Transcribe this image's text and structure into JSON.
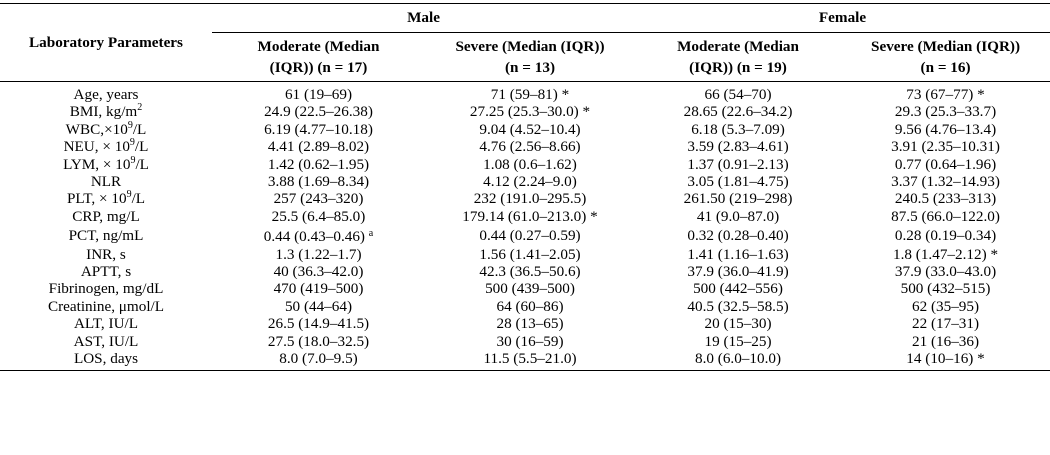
{
  "table": {
    "param_header": "Laboratory Parameters",
    "groups": [
      "Male",
      "Female"
    ],
    "subheaders": [
      [
        "Moderate (Median",
        "(IQR)) (n = 17)"
      ],
      [
        "Severe (Median (IQR))",
        "(n = 13)"
      ],
      [
        "Moderate (Median",
        "(IQR)) (n = 19)"
      ],
      [
        "Severe (Median (IQR))",
        "(n = 16)"
      ]
    ],
    "rows": [
      {
        "label": "Age, years",
        "cells": [
          "61 (19–69)",
          "71 (59–81) *",
          "66 (54–70)",
          "73 (67–77) *"
        ]
      },
      {
        "label": "BMI, kg/m",
        "label_sup": "2",
        "cells": [
          "24.9 (22.5–26.38)",
          "27.25 (25.3–30.0) *",
          "28.65 (22.6–34.2)",
          "29.3 (25.3–33.7)"
        ]
      },
      {
        "label": "WBC,×10",
        "label_sup": "9",
        "label_after": "/L",
        "cells": [
          "6.19 (4.77–10.18)",
          "9.04 (4.52–10.4)",
          "6.18 (5.3–7.09)",
          "9.56 (4.76–13.4)"
        ]
      },
      {
        "label": "NEU, × 10",
        "label_sup": "9",
        "label_after": "/L",
        "cells": [
          "4.41 (2.89–8.02)",
          "4.76 (2.56–8.66)",
          "3.59 (2.83–4.61)",
          "3.91 (2.35–10.31)"
        ]
      },
      {
        "label": "LYM, × 10",
        "label_sup": "9",
        "label_after": "/L",
        "cells": [
          "1.42 (0.62–1.95)",
          "1.08 (0.6–1.62)",
          "1.37 (0.91–2.13)",
          "0.77 (0.64–1.96)"
        ]
      },
      {
        "label": "NLR",
        "cells": [
          "3.88 (1.69–8.34)",
          "4.12 (2.24–9.0)",
          "3.05 (1.81–4.75)",
          "3.37 (1.32–14.93)"
        ]
      },
      {
        "label": "PLT, × 10",
        "label_sup": "9",
        "label_after": "/L",
        "cells": [
          "257 (243–320)",
          "232 (191.0–295.5)",
          "261.50 (219–298)",
          "240.5 (233–313)"
        ]
      },
      {
        "label": "CRP, mg/L",
        "cells": [
          "25.5 (6.4–85.0)",
          "179.14 (61.0–213.0) *",
          "41 (9.0–87.0)",
          "87.5 (66.0–122.0)"
        ]
      },
      {
        "label": "PCT, ng/mL",
        "cells": [
          "0.44 (0.43–0.46)",
          "0.44 (0.27–0.59)",
          "0.32 (0.28–0.40)",
          "0.28 (0.19–0.34)"
        ],
        "first_cell_sup": "a"
      },
      {
        "label": "INR, s",
        "cells": [
          "1.3 (1.22–1.7)",
          "1.56 (1.41–2.05)",
          "1.41 (1.16–1.63)",
          "1.8 (1.47–2.12) *"
        ]
      },
      {
        "label": "APTT, s",
        "cells": [
          "40 (36.3–42.0)",
          "42.3 (36.5–50.6)",
          "37.9 (36.0–41.9)",
          "37.9 (33.0–43.0)"
        ]
      },
      {
        "label": "Fibrinogen, mg/dL",
        "cells": [
          "470 (419–500)",
          "500 (439–500)",
          "500 (442–556)",
          "500 (432–515)"
        ]
      },
      {
        "label": "Creatinine, μmol/L",
        "cells": [
          "50 (44–64)",
          "64 (60–86)",
          "40.5 (32.5–58.5)",
          "62 (35–95)"
        ]
      },
      {
        "label": "ALT, IU/L",
        "cells": [
          "26.5 (14.9–41.5)",
          "28 (13–65)",
          "20 (15–30)",
          "22 (17–31)"
        ]
      },
      {
        "label": "AST, IU/L",
        "cells": [
          "27.5 (18.0–32.5)",
          "30 (16–59)",
          "19 (15–25)",
          "21 (16–36)"
        ]
      },
      {
        "label": "LOS, days",
        "cells": [
          "8.0 (7.0–9.5)",
          "11.5 (5.5–21.0)",
          "8.0 (6.0–10.0)",
          "14 (10–16) *"
        ]
      }
    ]
  }
}
